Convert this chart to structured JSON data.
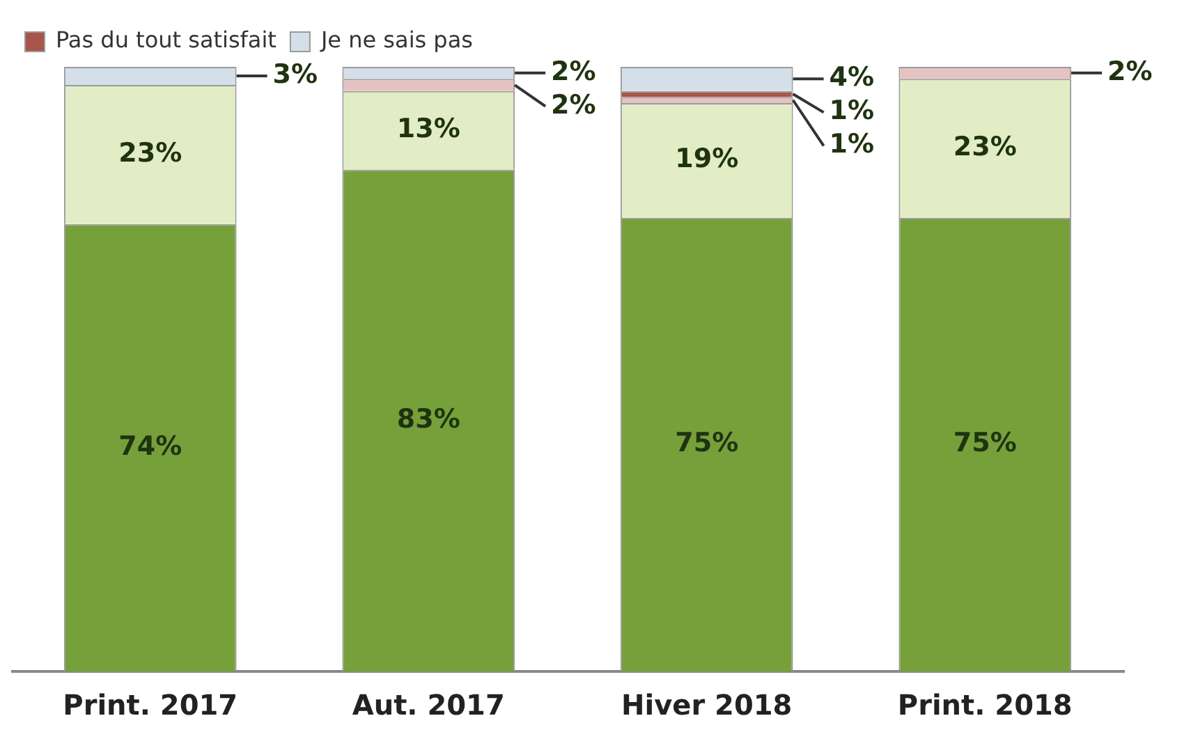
{
  "chart_data": {
    "type": "bar",
    "stacked": true,
    "categories": [
      "Print. 2017",
      "Aut. 2017",
      "Hiver 2018",
      "Print. 2018"
    ],
    "tick_labels": "x",
    "grid": false,
    "legend": "top left",
    "series": [
      {
        "color": "#76a03a",
        "values": [
          74,
          83,
          75,
          75
        ],
        "value_labels": [
          "74%",
          "83%",
          "75%",
          "75%"
        ]
      },
      {
        "color": "#e2edc6",
        "values": [
          23,
          13,
          19,
          23
        ],
        "value_labels": [
          "23%",
          "13%",
          "19%",
          "23%"
        ]
      },
      {
        "color": "#e6c3c3",
        "values": [
          null,
          2,
          1,
          2
        ],
        "value_labels": [
          null,
          "2%",
          "1%",
          "2%"
        ]
      },
      {
        "name": "Pas du tout satisfait",
        "color": "#a9554c",
        "values": [
          null,
          null,
          1,
          null
        ],
        "value_labels": [
          null,
          null,
          "1%",
          null
        ]
      },
      {
        "name": "Je ne sais pas",
        "color": "#d4dfea",
        "values": [
          3,
          2,
          4,
          null
        ],
        "value_labels": [
          "3%",
          "2%",
          "4%",
          null
        ]
      }
    ]
  }
}
